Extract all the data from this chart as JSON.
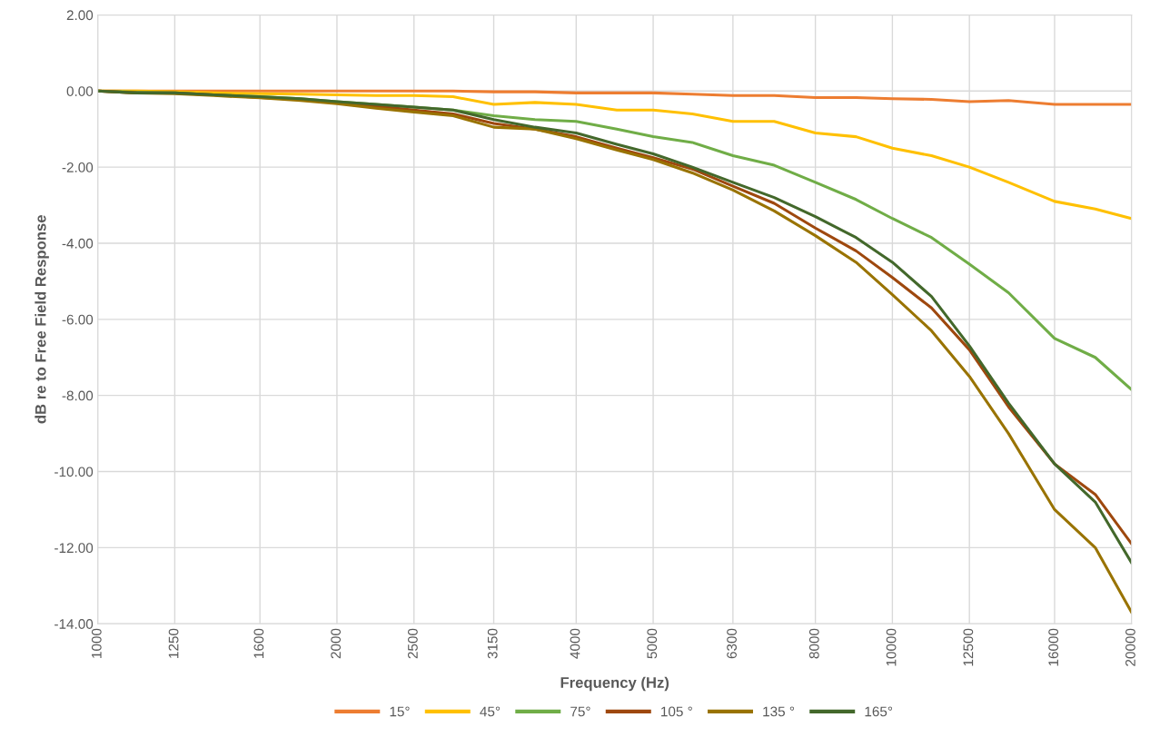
{
  "chart_data": {
    "type": "line",
    "xlabel": "Frequency (Hz)",
    "ylabel": "dB re to Free Field Response",
    "log": "x",
    "grid": true,
    "legend": "bottom",
    "marker": "none",
    "line_style": "solid",
    "x": [
      1000,
      1120,
      1250,
      1400,
      1600,
      1800,
      2000,
      2240,
      2500,
      2800,
      3150,
      3550,
      4000,
      4500,
      5000,
      5600,
      6300,
      7100,
      8000,
      9000,
      10000,
      11200,
      12500,
      14000,
      16000,
      18000,
      20000
    ],
    "xlim": [
      1000,
      20000
    ],
    "xticks": [
      1000,
      1250,
      1600,
      2000,
      2500,
      3150,
      4000,
      5000,
      6300,
      8000,
      10000,
      12500,
      16000,
      20000
    ],
    "ylim": [
      -14,
      2
    ],
    "yticks": [
      {
        "value": 2,
        "label": "2.00"
      },
      {
        "value": 0,
        "label": "0.00"
      },
      {
        "value": -2,
        "label": "-2.00"
      },
      {
        "value": -4,
        "label": "-4.00"
      },
      {
        "value": -6,
        "label": "-6.00"
      },
      {
        "value": -8,
        "label": "-8.00"
      },
      {
        "value": -10,
        "label": "-10.00"
      },
      {
        "value": -12,
        "label": "-12.00"
      },
      {
        "value": -14,
        "label": "-14.00"
      }
    ],
    "series": [
      {
        "name": "15°",
        "color": "#ed7d31",
        "values": [
          0,
          0,
          0,
          0,
          0,
          0,
          0,
          0,
          0,
          0,
          -0.02,
          -0.02,
          -0.05,
          -0.05,
          -0.05,
          -0.08,
          -0.12,
          -0.12,
          -0.17,
          -0.17,
          -0.2,
          -0.22,
          -0.28,
          -0.25,
          -0.35,
          -0.35,
          -0.35
        ]
      },
      {
        "name": "45°",
        "color": "#ffc000",
        "values": [
          0,
          0,
          -0.02,
          -0.05,
          -0.07,
          -0.08,
          -0.1,
          -0.12,
          -0.12,
          -0.15,
          -0.35,
          -0.3,
          -0.35,
          -0.5,
          -0.5,
          -0.6,
          -0.8,
          -0.8,
          -1.1,
          -1.2,
          -1.5,
          -1.7,
          -2.0,
          -2.4,
          -2.9,
          -3.1,
          -3.35
        ]
      },
      {
        "name": "75°",
        "color": "#70ad47",
        "values": [
          0,
          -0.03,
          -0.05,
          -0.1,
          -0.15,
          -0.2,
          -0.28,
          -0.35,
          -0.42,
          -0.5,
          -0.65,
          -0.75,
          -0.8,
          -1.0,
          -1.2,
          -1.35,
          -1.7,
          -1.95,
          -2.4,
          -2.85,
          -3.35,
          -3.85,
          -4.55,
          -5.3,
          -6.5,
          -7.0,
          -7.85
        ]
      },
      {
        "name": "105 °",
        "color": "#9e480e",
        "values": [
          0,
          -0.05,
          -0.05,
          -0.1,
          -0.17,
          -0.22,
          -0.3,
          -0.4,
          -0.5,
          -0.6,
          -0.85,
          -1.0,
          -1.2,
          -1.5,
          -1.75,
          -2.05,
          -2.5,
          -2.95,
          -3.6,
          -4.2,
          -4.9,
          -5.7,
          -6.8,
          -8.3,
          -9.8,
          -10.6,
          -11.9
        ]
      },
      {
        "name": "135 °",
        "color": "#997300",
        "values": [
          0,
          -0.05,
          -0.07,
          -0.12,
          -0.18,
          -0.25,
          -0.33,
          -0.45,
          -0.55,
          -0.65,
          -0.95,
          -1.0,
          -1.25,
          -1.55,
          -1.8,
          -2.15,
          -2.6,
          -3.15,
          -3.8,
          -4.5,
          -5.35,
          -6.3,
          -7.5,
          -9.0,
          -11.0,
          -12.0,
          -13.7
        ]
      },
      {
        "name": "165°",
        "color": "#43682b",
        "values": [
          0,
          -0.05,
          -0.05,
          -0.1,
          -0.15,
          -0.2,
          -0.28,
          -0.35,
          -0.42,
          -0.5,
          -0.75,
          -0.95,
          -1.1,
          -1.4,
          -1.65,
          -2.0,
          -2.4,
          -2.8,
          -3.3,
          -3.85,
          -4.5,
          -5.4,
          -6.7,
          -8.2,
          -9.8,
          -10.8,
          -12.4
        ]
      }
    ]
  }
}
